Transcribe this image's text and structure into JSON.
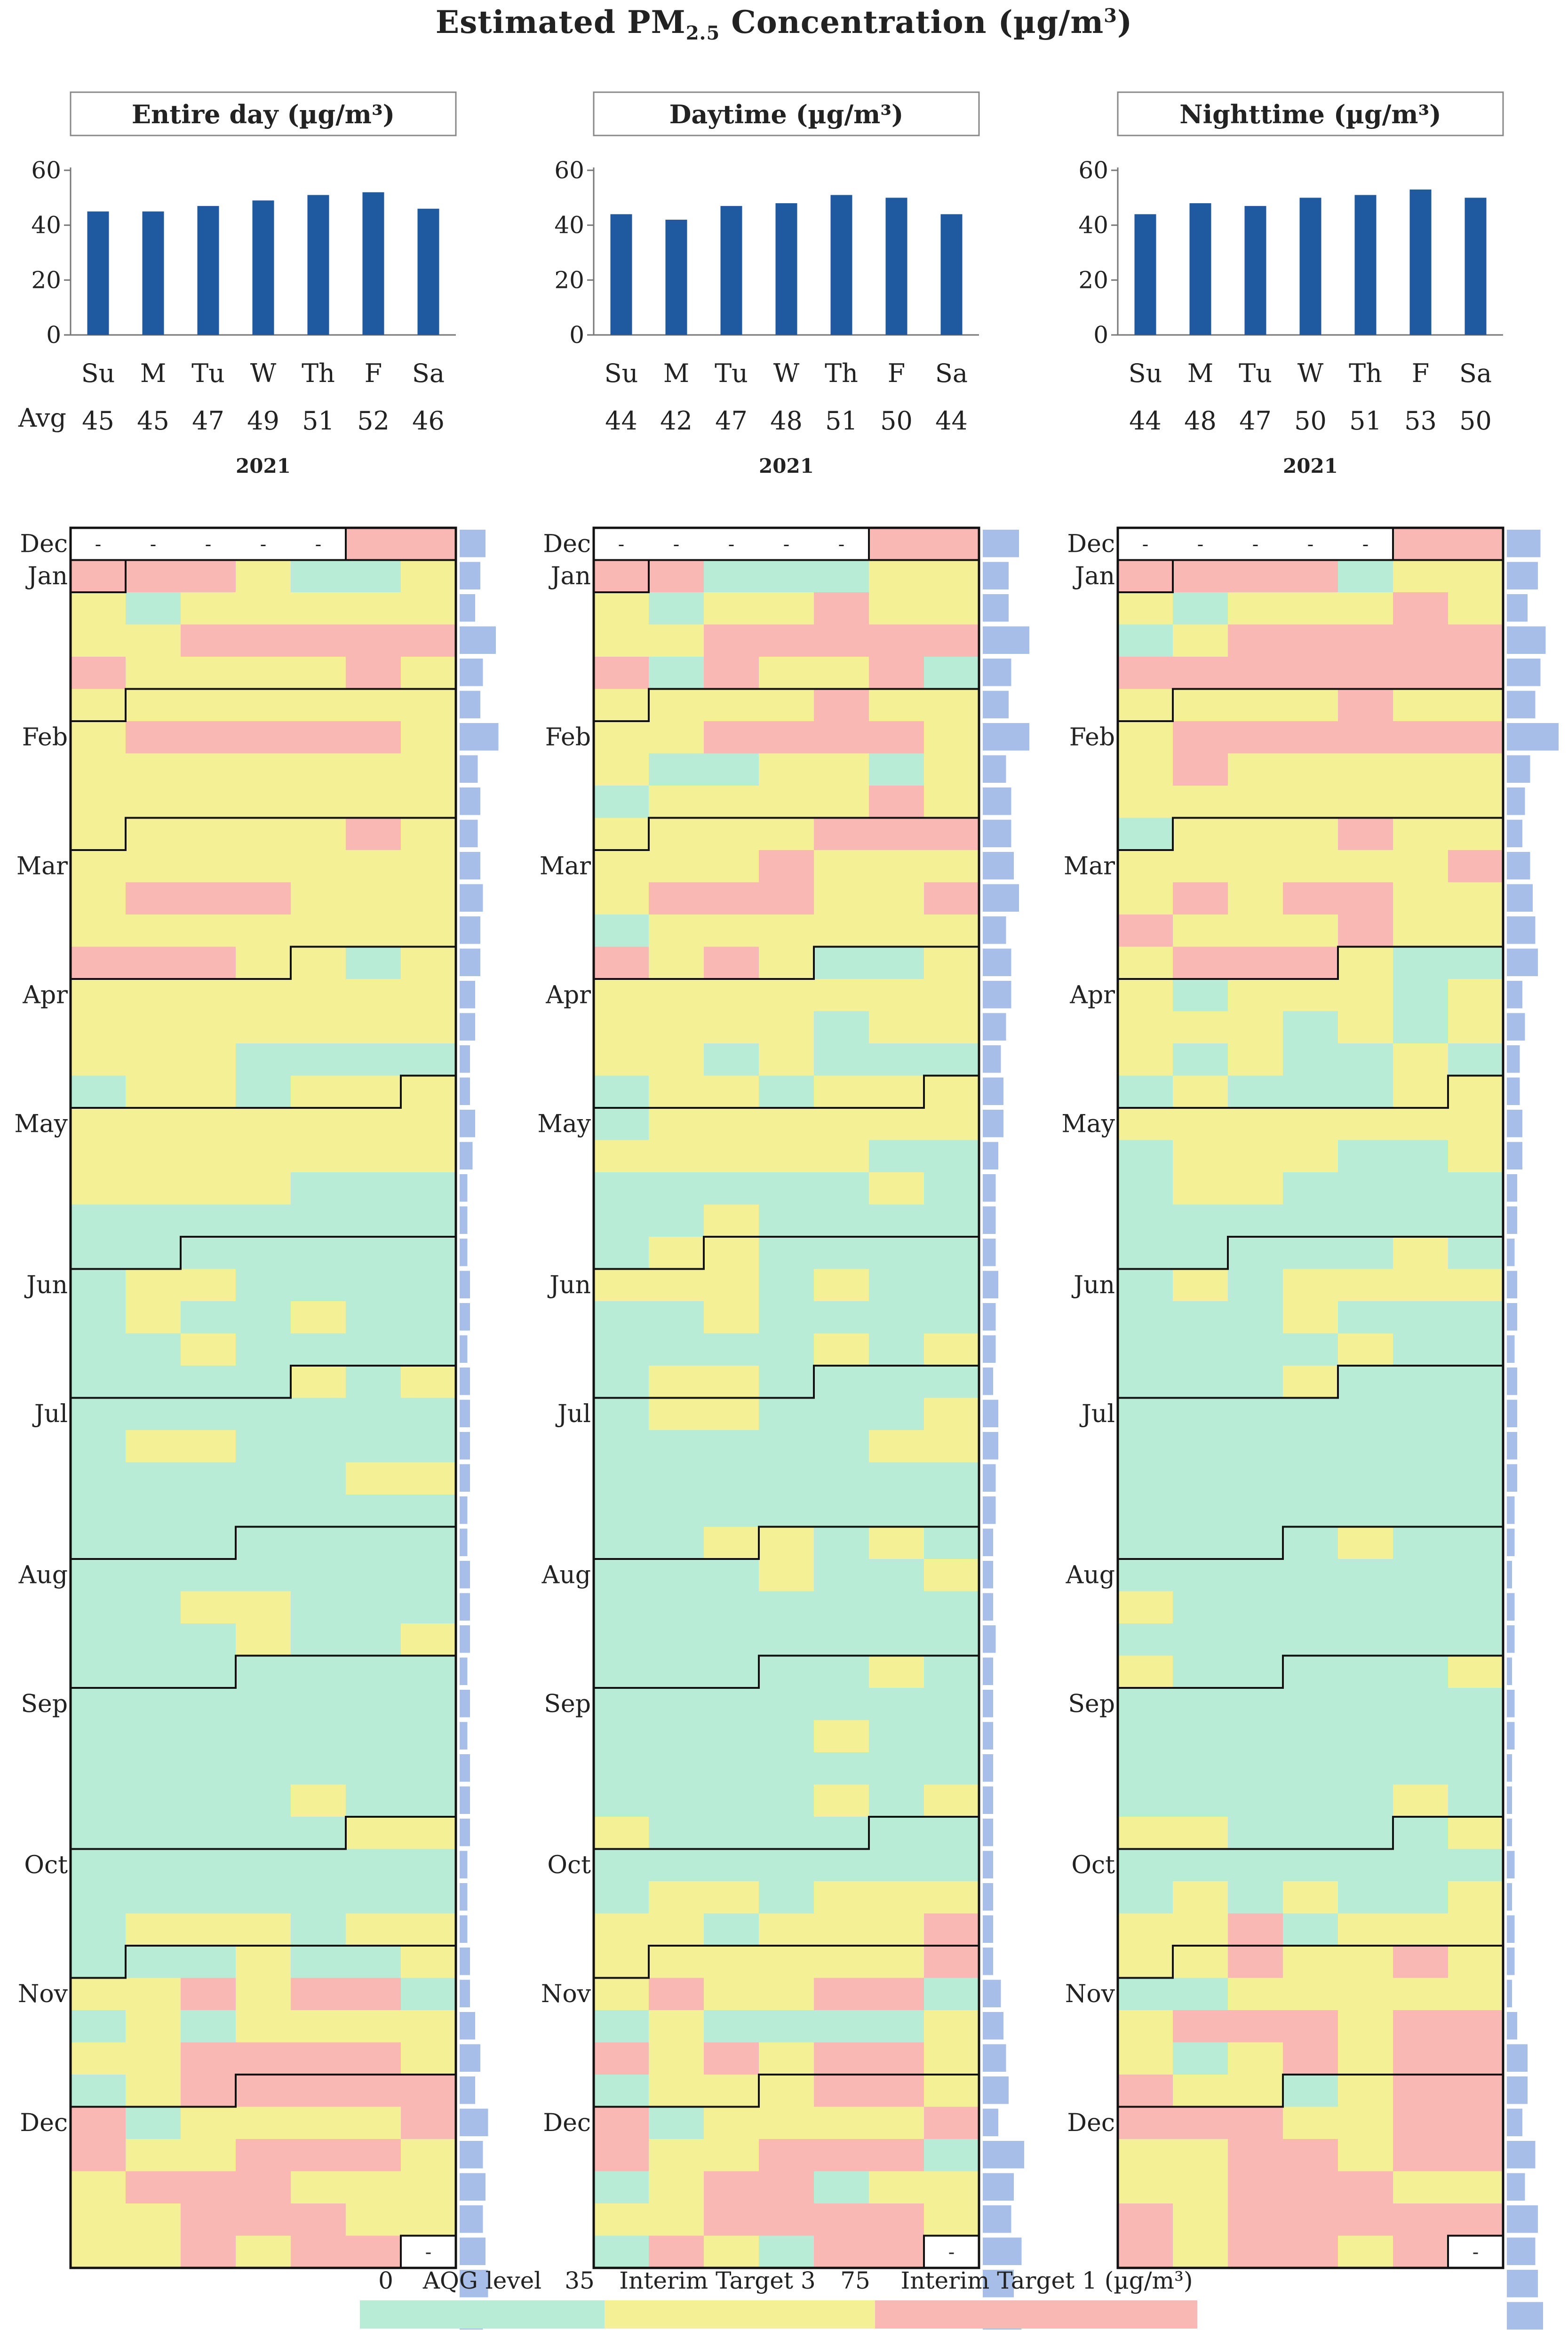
{
  "chart_data": {
    "type": "heatmap",
    "title_main": "Estimated PM",
    "title_sub": "2.5",
    "title_rest": " Concentration (µg/m",
    "title_sup": "3",
    "title_end": ")",
    "year": "2021",
    "weekdays": [
      "Su",
      "M",
      "Tu",
      "W",
      "Th",
      "F",
      "Sa"
    ],
    "avg_label": "Avg",
    "y_ticks": [
      0,
      20,
      40,
      60
    ],
    "ylim": [
      0,
      60
    ],
    "months": [
      "Dec",
      "Jan",
      "Feb",
      "Mar",
      "Apr",
      "May",
      "Jun",
      "Jul",
      "Aug",
      "Sep",
      "Oct",
      "Nov",
      "Dec"
    ],
    "missing_marker": "-",
    "panels": [
      {
        "label": "Entire day (µg/m³)",
        "averages": [
          45,
          45,
          47,
          49,
          51,
          52,
          46
        ],
        "grid": [
          "xxxxxRR",
          "RRRYGGY",
          "YGYYYYY",
          "YYRRRRR",
          "RYYYYRY",
          "YYYYYYY",
          "YRRRRRY",
          "YYYYYYY",
          "YYYYYYY",
          "YYYYYRY",
          "YYYYYYY",
          "YRRRYYY",
          "YYYYYYY",
          "RRRYYGY",
          "YYYYYYY",
          "YYYYYYY",
          "YYYGGGG",
          "GYYGYYY",
          "YYYYYYY",
          "YYYYYYY",
          "YYYYGGG",
          "GGGGGGG",
          "GGGGGGG",
          "GYYGGGG",
          "GYGGYGG",
          "GGYGGGG",
          "GGGGYGY",
          "GGGGGGG",
          "GYYGGGG",
          "GGGGGYY",
          "GGGGGGG",
          "GGGGGGG",
          "GGGGGGG",
          "GGYYGGG",
          "GGGYGGY",
          "GGGGGGG",
          "GGGGGGG",
          "GGGGGGG",
          "GGGGGGG",
          "GGGGYGG",
          "GGGGGYY",
          "GGGGGGG",
          "GGGGGGG",
          "GYYYGYY",
          "GGGYGGY",
          "YYRYRRG",
          "GYGYYYY",
          "YYRRRRY",
          "GYRRRRR",
          "RGYYYYR",
          "RYYRRRY",
          "YRRRYYY",
          "YYRRRYY",
          "YYRYRRx"
        ],
        "bars": [
          0.5,
          0.4,
          0.3,
          0.7,
          0.45,
          0.4,
          0.75,
          0.35,
          0.4,
          0.35,
          0.4,
          0.45,
          0.4,
          0.4,
          0.3,
          0.3,
          0.2,
          0.2,
          0.3,
          0.25,
          0.15,
          0.15,
          0.15,
          0.2,
          0.2,
          0.15,
          0.2,
          0.2,
          0.2,
          0.2,
          0.15,
          0.15,
          0.2,
          0.2,
          0.2,
          0.15,
          0.2,
          0.15,
          0.2,
          0.2,
          0.2,
          0.15,
          0.15,
          0.15,
          0.2,
          0.2,
          0.3,
          0.4,
          0.3,
          0.55,
          0.45,
          0.5,
          0.45,
          0.5,
          0.55,
          0.45,
          0.5,
          0.45
        ]
      },
      {
        "label": "Daytime (µg/m³)",
        "averages": [
          44,
          42,
          47,
          48,
          51,
          50,
          44
        ],
        "grid": [
          "xxxxxRR",
          "RRGGGYY",
          "YGYYRYY",
          "YYRRRRR",
          "RGRYYRG",
          "YYYYRYY",
          "YYRRRRY",
          "YGGYYGY",
          "GYYYYRY",
          "YYYYRRR",
          "YYYRYYY",
          "YRRRYYR",
          "GYYYYYY",
          "RYRYGGY",
          "YYYYYYY",
          "YYYYGYY",
          "YYGYGGG",
          "GYYGYYY",
          "GYYYYYY",
          "YYYYYGG",
          "GGGGGYG",
          "GGYGGGG",
          "GYYGGGG",
          "YYYGYGG",
          "GGYGGGG",
          "GGGGYGY",
          "GYYGGGG",
          "GYYGGGY",
          "GGGGGYY",
          "GGGGGGG",
          "GGGGGGG",
          "GGYYGYG",
          "GGGYGGY",
          "GGGGGGG",
          "GGGGGGG",
          "GGGGGYG",
          "GGGGGGG",
          "GGGGYGG",
          "GGGGGGG",
          "GGGGYGY",
          "YGGGGGG",
          "GGGGGGG",
          "GYYGYYY",
          "YYGYYYR",
          "YYYYYYR",
          "YRYYRRG",
          "GYGGGGY",
          "RYRYRRY",
          "GYYYRRY",
          "RGYYYYR",
          "RYYRRRG",
          "GYRRGYY",
          "YYRRRRY",
          "GRYGRRx"
        ],
        "bars": [
          0.7,
          0.5,
          0.5,
          0.9,
          0.55,
          0.5,
          0.9,
          0.45,
          0.55,
          0.55,
          0.6,
          0.7,
          0.45,
          0.55,
          0.55,
          0.45,
          0.35,
          0.4,
          0.4,
          0.3,
          0.25,
          0.25,
          0.25,
          0.3,
          0.25,
          0.25,
          0.2,
          0.3,
          0.3,
          0.25,
          0.25,
          0.2,
          0.2,
          0.2,
          0.25,
          0.2,
          0.2,
          0.2,
          0.2,
          0.2,
          0.2,
          0.2,
          0.2,
          0.2,
          0.2,
          0.35,
          0.4,
          0.45,
          0.5,
          0.3,
          0.8,
          0.6,
          0.55,
          0.75,
          0.6,
          0.75,
          0.65,
          0.55
        ]
      },
      {
        "label": "Nighttime (µg/m³)",
        "averages": [
          44,
          48,
          47,
          50,
          51,
          53,
          50
        ],
        "grid": [
          "xxxxxRR",
          "RRRRGYY",
          "YGYYYRY",
          "GYRRRRR",
          "RRRRRRR",
          "YYYYRYY",
          "YRRRRRR",
          "YRYYYYY",
          "YYYYYYY",
          "GYYYRYY",
          "YYYYYYR",
          "YRYRRYY",
          "RYYYRYY",
          "YRRRYGG",
          "YGYYYGY",
          "YYYGYGY",
          "YGYGGYG",
          "GYGGGYY",
          "YYYYYYY",
          "GYYYGGY",
          "GYYGGGG",
          "GGGGGGG",
          "GGGGGYG",
          "GYGYYYY",
          "GGGYGGG",
          "GGGGYGG",
          "GGGYGGG",
          "GGGGGGG",
          "GGGGGGG",
          "GGGGGGG",
          "GGGGGGG",
          "GGGGYGG",
          "GGGGGGG",
          "YGGGGGG",
          "GGGGGGG",
          "YGGGGGY",
          "GGGGGGG",
          "GGGGGGG",
          "GGGGGGG",
          "GGGGGYG",
          "YYGGGGY",
          "GGGGGGG",
          "GYGYGGY",
          "YYRGYYY",
          "YYRYYRY",
          "GGYYYYY",
          "YRRRYRR",
          "YGYRYRR",
          "RYYGYRR",
          "RRRYYRR",
          "YYRRYRR",
          "YYRRRYY",
          "RYRRRRR",
          "RYRRYRx"
        ],
        "bars": [
          0.65,
          0.6,
          0.4,
          0.75,
          0.65,
          0.55,
          1.0,
          0.45,
          0.35,
          0.3,
          0.45,
          0.5,
          0.55,
          0.6,
          0.3,
          0.35,
          0.25,
          0.25,
          0.3,
          0.3,
          0.2,
          0.2,
          0.15,
          0.2,
          0.2,
          0.15,
          0.2,
          0.2,
          0.2,
          0.2,
          0.15,
          0.15,
          0.1,
          0.15,
          0.15,
          0.1,
          0.15,
          0.15,
          0.1,
          0.1,
          0.1,
          0.15,
          0.1,
          0.15,
          0.15,
          0.1,
          0.2,
          0.4,
          0.4,
          0.3,
          0.55,
          0.35,
          0.6,
          0.55,
          0.6,
          0.7,
          0.55,
          0.65
        ]
      }
    ],
    "legend": {
      "labels": [
        "0",
        "AQG level",
        "35",
        "Interim Target 3",
        "75",
        "Interim Target 1 (µg/m³)"
      ],
      "colors": {
        "green": "#b9ecd6",
        "yellow": "#f4f095",
        "red": "#f9b8b4"
      }
    },
    "bar_color": "#1f5aa0",
    "side_bar_color": "#a7bfe8"
  }
}
